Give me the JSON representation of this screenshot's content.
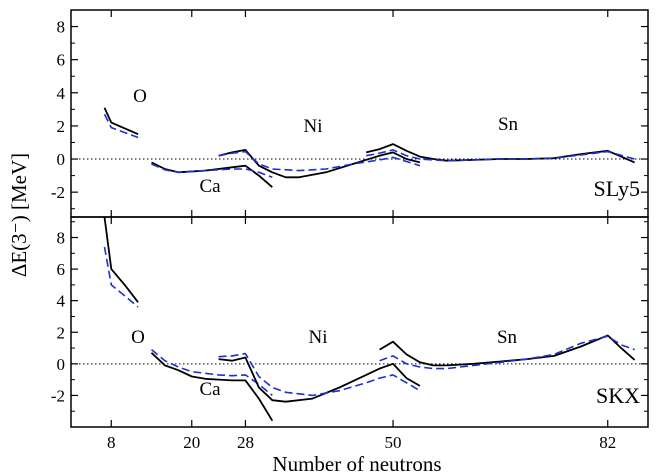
{
  "chart_data": [
    {
      "type": "line",
      "model_label": "SLy5",
      "ylabel": "ΔE(3⁻) [MeV]",
      "ylim": [
        -3.5,
        9
      ],
      "xlim": [
        2,
        88
      ],
      "xticks": [
        8,
        20,
        28,
        50,
        82
      ],
      "yticks": [
        -2,
        0,
        2,
        4,
        6,
        8
      ],
      "zero_line": "dotted",
      "legend": "none",
      "region_labels": [
        {
          "name": "O",
          "text": "O"
        },
        {
          "name": "Ca",
          "text": "Ca"
        },
        {
          "name": "Ni",
          "text": "Ni"
        },
        {
          "name": "Sn",
          "text": "Sn"
        }
      ],
      "series": [
        {
          "style": "solid",
          "color": "#000000",
          "points": [
            [
              7,
              3.1
            ],
            [
              8,
              2.2
            ],
            [
              12,
              1.5
            ]
          ]
        },
        {
          "style": "dashed",
          "color": "#1e2fd0",
          "points": [
            [
              7,
              2.7
            ],
            [
              8,
              1.9
            ],
            [
              12,
              1.3
            ]
          ]
        },
        {
          "style": "solid",
          "color": "#000000",
          "points": [
            [
              14,
              -0.2
            ],
            [
              16,
              -0.6
            ],
            [
              18,
              -0.8
            ],
            [
              22,
              -0.7
            ],
            [
              26,
              -0.5
            ],
            [
              28,
              -0.4
            ],
            [
              30,
              -1.0
            ],
            [
              32,
              -1.7
            ]
          ]
        },
        {
          "style": "dashed",
          "color": "#1e2fd0",
          "points": [
            [
              14,
              -0.3
            ],
            [
              16,
              -0.65
            ],
            [
              18,
              -0.8
            ],
            [
              22,
              -0.7
            ],
            [
              26,
              -0.6
            ],
            [
              28,
              -0.6
            ],
            [
              30,
              -0.8
            ],
            [
              32,
              -1.1
            ]
          ]
        },
        {
          "style": "solid",
          "color": "#000000",
          "points": [
            [
              24,
              0.2
            ],
            [
              26,
              0.4
            ],
            [
              28,
              0.55
            ],
            [
              30,
              -0.4
            ],
            [
              32,
              -0.8
            ],
            [
              34,
              -1.1
            ],
            [
              36,
              -1.1
            ],
            [
              40,
              -0.8
            ],
            [
              44,
              -0.3
            ],
            [
              48,
              0.2
            ],
            [
              50,
              0.4
            ],
            [
              52,
              0.0
            ],
            [
              54,
              -0.2
            ]
          ]
        },
        {
          "style": "dashed",
          "color": "#1e2fd0",
          "points": [
            [
              24,
              0.2
            ],
            [
              26,
              0.35
            ],
            [
              28,
              0.45
            ],
            [
              30,
              -0.3
            ],
            [
              32,
              -0.6
            ],
            [
              36,
              -0.7
            ],
            [
              40,
              -0.6
            ],
            [
              44,
              -0.3
            ],
            [
              48,
              -0.05
            ],
            [
              50,
              0.1
            ],
            [
              52,
              -0.15
            ],
            [
              54,
              -0.4
            ]
          ]
        },
        {
          "style": "solid",
          "color": "#000000",
          "points": [
            [
              46,
              0.4
            ],
            [
              48,
              0.6
            ],
            [
              50,
              0.9
            ],
            [
              52,
              0.5
            ],
            [
              54,
              0.15
            ],
            [
              56,
              0.0
            ],
            [
              58,
              -0.1
            ],
            [
              62,
              -0.05
            ],
            [
              66,
              0.0
            ],
            [
              70,
              0.0
            ],
            [
              74,
              0.05
            ],
            [
              78,
              0.3
            ],
            [
              82,
              0.5
            ],
            [
              86,
              -0.2
            ]
          ]
        },
        {
          "style": "dashed",
          "color": "#1e2fd0",
          "points": [
            [
              46,
              0.2
            ],
            [
              48,
              0.35
            ],
            [
              50,
              0.55
            ],
            [
              52,
              0.2
            ],
            [
              54,
              0.0
            ],
            [
              56,
              -0.05
            ],
            [
              58,
              -0.1
            ],
            [
              62,
              -0.05
            ],
            [
              66,
              0.0
            ],
            [
              70,
              0.0
            ],
            [
              74,
              0.05
            ],
            [
              78,
              0.25
            ],
            [
              82,
              0.45
            ],
            [
              86,
              0.0
            ]
          ]
        }
      ]
    },
    {
      "type": "line",
      "model_label": "SKX",
      "ylabel": "ΔE(3⁻) [MeV]",
      "xlabel": "Number of neutrons",
      "ylim": [
        -4,
        9.3
      ],
      "xlim": [
        2,
        88
      ],
      "xticks": [
        8,
        20,
        28,
        50,
        82
      ],
      "yticks": [
        -2,
        0,
        2,
        4,
        6,
        8
      ],
      "zero_line": "dotted",
      "legend": "none",
      "region_labels": [
        {
          "name": "O",
          "text": "O"
        },
        {
          "name": "Ca",
          "text": "Ca"
        },
        {
          "name": "Ni",
          "text": "Ni"
        },
        {
          "name": "Sn",
          "text": "Sn"
        }
      ],
      "series": [
        {
          "style": "solid",
          "color": "#000000",
          "points": [
            [
              7,
              9.3
            ],
            [
              8,
              6.0
            ],
            [
              10,
              5.0
            ],
            [
              12,
              3.9
            ]
          ]
        },
        {
          "style": "dashed",
          "color": "#1e2fd0",
          "points": [
            [
              7,
              7.4
            ],
            [
              8,
              5.0
            ],
            [
              10,
              4.3
            ],
            [
              12,
              3.6
            ]
          ]
        },
        {
          "style": "solid",
          "color": "#000000",
          "points": [
            [
              14,
              0.7
            ],
            [
              16,
              -0.1
            ],
            [
              18,
              -0.4
            ],
            [
              20,
              -0.8
            ],
            [
              22,
              -0.95
            ],
            [
              24,
              -1.0
            ],
            [
              26,
              -1.05
            ],
            [
              28,
              -1.05
            ],
            [
              30,
              -2.2
            ],
            [
              32,
              -3.6
            ]
          ]
        },
        {
          "style": "dashed",
          "color": "#1e2fd0",
          "points": [
            [
              14,
              0.9
            ],
            [
              16,
              0.2
            ],
            [
              18,
              -0.2
            ],
            [
              20,
              -0.5
            ],
            [
              22,
              -0.6
            ],
            [
              24,
              -0.7
            ],
            [
              26,
              -0.75
            ],
            [
              28,
              -0.7
            ],
            [
              30,
              -1.3
            ],
            [
              32,
              -2.0
            ]
          ]
        },
        {
          "style": "solid",
          "color": "#000000",
          "points": [
            [
              24,
              0.3
            ],
            [
              26,
              0.2
            ],
            [
              28,
              0.4
            ],
            [
              30,
              -1.5
            ],
            [
              32,
              -2.3
            ],
            [
              34,
              -2.4
            ],
            [
              38,
              -2.2
            ],
            [
              42,
              -1.5
            ],
            [
              46,
              -0.7
            ],
            [
              48,
              -0.3
            ],
            [
              50,
              0.0
            ],
            [
              52,
              -0.9
            ],
            [
              54,
              -1.4
            ]
          ]
        },
        {
          "style": "dashed",
          "color": "#1e2fd0",
          "points": [
            [
              24,
              0.45
            ],
            [
              26,
              0.5
            ],
            [
              28,
              0.65
            ],
            [
              30,
              -0.8
            ],
            [
              32,
              -1.5
            ],
            [
              34,
              -1.8
            ],
            [
              38,
              -2.0
            ],
            [
              42,
              -1.7
            ],
            [
              46,
              -1.2
            ],
            [
              48,
              -0.9
            ],
            [
              50,
              -0.7
            ],
            [
              52,
              -1.2
            ],
            [
              54,
              -1.7
            ]
          ]
        },
        {
          "style": "solid",
          "color": "#000000",
          "points": [
            [
              48,
              0.9
            ],
            [
              50,
              1.4
            ],
            [
              52,
              0.6
            ],
            [
              54,
              0.1
            ],
            [
              56,
              -0.1
            ],
            [
              58,
              -0.1
            ],
            [
              62,
              0.0
            ],
            [
              66,
              0.15
            ],
            [
              70,
              0.3
            ],
            [
              74,
              0.5
            ],
            [
              78,
              1.1
            ],
            [
              82,
              1.8
            ],
            [
              84,
              1.0
            ],
            [
              86,
              0.25
            ]
          ]
        },
        {
          "style": "dashed",
          "color": "#1e2fd0",
          "points": [
            [
              48,
              0.2
            ],
            [
              50,
              0.5
            ],
            [
              52,
              0.0
            ],
            [
              54,
              -0.2
            ],
            [
              56,
              -0.3
            ],
            [
              58,
              -0.3
            ],
            [
              62,
              -0.1
            ],
            [
              66,
              0.1
            ],
            [
              70,
              0.3
            ],
            [
              74,
              0.6
            ],
            [
              78,
              1.3
            ],
            [
              82,
              1.75
            ],
            [
              84,
              1.2
            ],
            [
              86,
              0.9
            ]
          ]
        }
      ]
    }
  ]
}
